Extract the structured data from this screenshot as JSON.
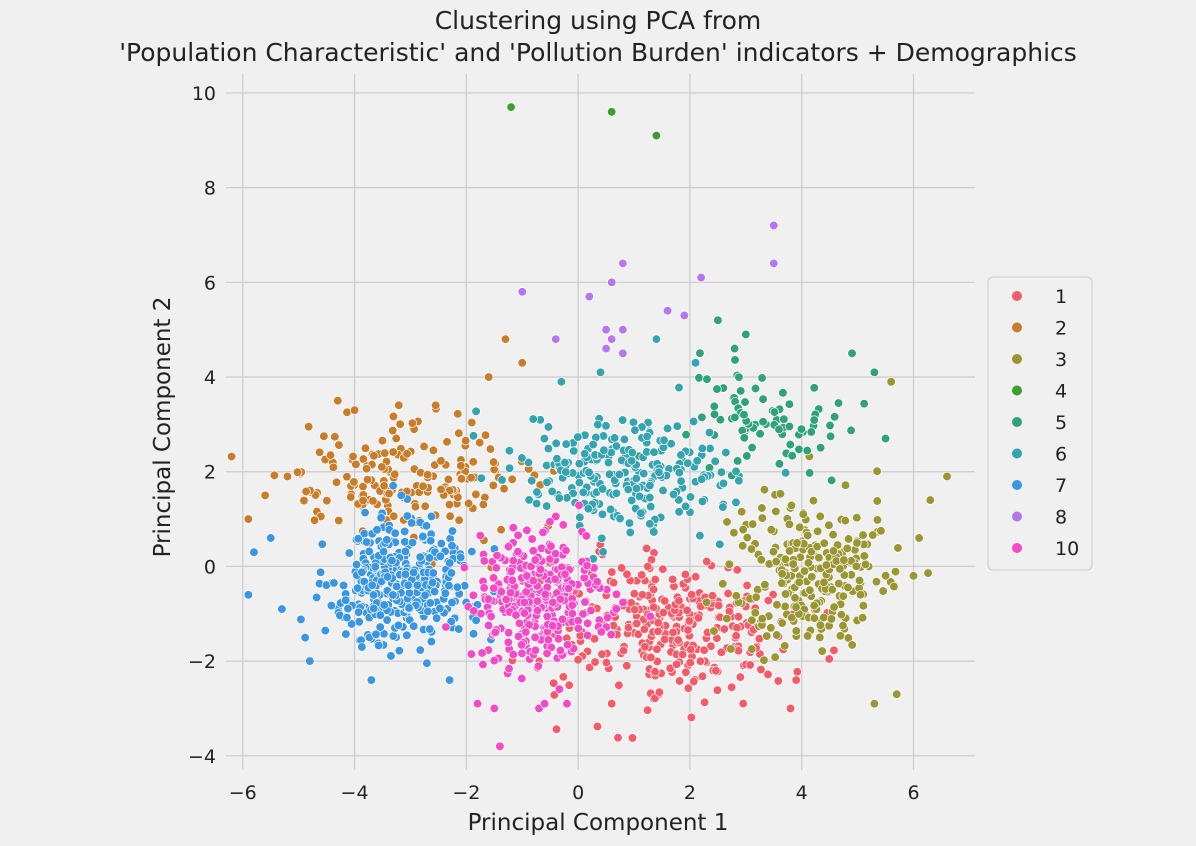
{
  "chart_data": {
    "type": "scatter",
    "title": "Clustering using PCA from",
    "subtitle": "'Population Characteristic' and 'Pollution Burden' indicators + Demographics",
    "xlabel": "Principal Component 1",
    "ylabel": "Principal Component 2",
    "xlim": [
      -6.3,
      7.1
    ],
    "ylim": [
      -4.3,
      10.4
    ],
    "xticks": [
      -6,
      -4,
      -2,
      0,
      2,
      4,
      6
    ],
    "yticks": [
      -4,
      -2,
      0,
      2,
      4,
      6,
      8,
      10
    ],
    "xtick_labels": [
      "−6",
      "−4",
      "−2",
      "0",
      "2",
      "4",
      "6"
    ],
    "ytick_labels": [
      "−4",
      "−2",
      "0",
      "2",
      "4",
      "6",
      "8",
      "10"
    ],
    "grid": true,
    "legend_position": "center-right",
    "series": [
      {
        "name": "1",
        "color": "#f45b69",
        "clusters": [
          {
            "cx": 1.6,
            "cy": -1.3,
            "sx": 1.4,
            "sy": 1.0,
            "n": 320
          }
        ],
        "points": [
          [
            0.6,
            -2.9
          ],
          [
            3.8,
            -3.0
          ],
          [
            3.9,
            -2.4
          ]
        ]
      },
      {
        "name": "2",
        "color": "#c87d2b",
        "clusters": [
          {
            "cx": -3.1,
            "cy": 1.9,
            "sx": 1.4,
            "sy": 0.8,
            "n": 190
          }
        ],
        "points": [
          [
            -1.3,
            4.8
          ],
          [
            -1.6,
            4.0
          ],
          [
            -1.0,
            4.3
          ],
          [
            -4.3,
            3.5
          ],
          [
            -5.2,
            1.9
          ],
          [
            -5.6,
            1.5
          ],
          [
            -5.9,
            1.0
          ],
          [
            -4.0,
            3.3
          ]
        ]
      },
      {
        "name": "3",
        "color": "#9a9632",
        "clusters": [
          {
            "cx": 4.1,
            "cy": -0.1,
            "sx": 0.9,
            "sy": 1.1,
            "n": 260
          }
        ],
        "points": [
          [
            6.6,
            1.9
          ],
          [
            6.3,
            1.4
          ],
          [
            6.1,
            0.6
          ],
          [
            6.0,
            -0.2
          ],
          [
            5.7,
            -2.7
          ],
          [
            5.3,
            -2.9
          ],
          [
            5.6,
            3.9
          ]
        ]
      },
      {
        "name": "4",
        "color": "#3d9e2f",
        "clusters": [],
        "points": [
          [
            -1.2,
            9.7
          ],
          [
            0.6,
            9.6
          ],
          [
            1.4,
            9.1
          ]
        ]
      },
      {
        "name": "5",
        "color": "#2fa17c",
        "clusters": [
          {
            "cx": 3.3,
            "cy": 3.0,
            "sx": 1.1,
            "sy": 0.8,
            "n": 80
          }
        ],
        "points": [
          [
            2.5,
            5.2
          ],
          [
            3.0,
            4.9
          ],
          [
            2.8,
            4.6
          ],
          [
            4.9,
            4.5
          ],
          [
            5.3,
            4.1
          ],
          [
            5.5,
            2.7
          ]
        ]
      },
      {
        "name": "6",
        "color": "#35a3b0",
        "clusters": [
          {
            "cx": 0.9,
            "cy": 1.9,
            "sx": 1.3,
            "sy": 0.8,
            "n": 250
          }
        ],
        "points": [
          [
            0.4,
            4.1
          ],
          [
            -0.3,
            3.9
          ],
          [
            1.4,
            4.8
          ],
          [
            2.1,
            4.3
          ]
        ]
      },
      {
        "name": "7",
        "color": "#3a96e0",
        "clusters": [
          {
            "cx": -3.2,
            "cy": -0.3,
            "sx": 0.85,
            "sy": 0.8,
            "n": 400
          }
        ],
        "points": [
          [
            -5.9,
            -0.6
          ],
          [
            -5.3,
            -0.9
          ],
          [
            -4.8,
            -2.0
          ],
          [
            -3.7,
            -2.4
          ],
          [
            -2.3,
            -2.4
          ],
          [
            -5.8,
            0.3
          ],
          [
            -5.5,
            0.6
          ]
        ]
      },
      {
        "name": "8",
        "color": "#b676ee",
        "clusters": [],
        "points": [
          [
            3.5,
            7.2
          ],
          [
            3.5,
            6.4
          ],
          [
            0.8,
            6.4
          ],
          [
            2.2,
            6.1
          ],
          [
            0.6,
            6.0
          ],
          [
            -1.0,
            5.8
          ],
          [
            0.2,
            5.7
          ],
          [
            1.6,
            5.4
          ],
          [
            1.9,
            5.3
          ],
          [
            0.5,
            5.0
          ],
          [
            0.8,
            5.0
          ],
          [
            -0.4,
            4.8
          ],
          [
            0.6,
            4.8
          ],
          [
            0.8,
            4.5
          ],
          [
            0.5,
            4.6
          ]
        ]
      },
      {
        "name": "10",
        "color": "#f54ac6",
        "clusters": [
          {
            "cx": -0.7,
            "cy": -0.7,
            "sx": 0.75,
            "sy": 0.8,
            "n": 330
          }
        ],
        "points": [
          [
            -1.4,
            -3.8
          ],
          [
            -1.8,
            -2.9
          ],
          [
            -1.5,
            -3.0
          ],
          [
            -0.7,
            -3.0
          ],
          [
            -0.6,
            -2.9
          ],
          [
            -0.2,
            -2.9
          ]
        ]
      }
    ]
  }
}
